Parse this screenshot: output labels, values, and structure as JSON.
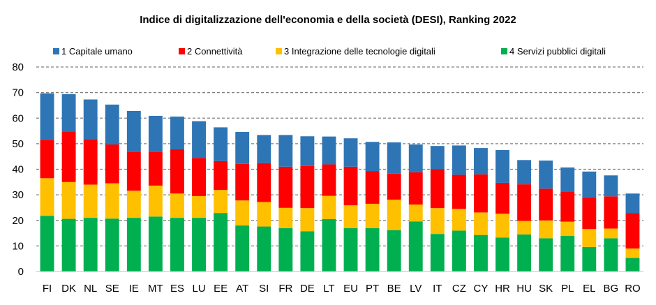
{
  "chart_data": {
    "type": "bar",
    "stacked": true,
    "title": "Indice di digitalizzazione dell'economia e della società (DESI), Ranking 2022",
    "xlabel": "",
    "ylabel": "",
    "ylim": [
      0,
      80
    ],
    "yticks": [
      0,
      10,
      20,
      30,
      40,
      50,
      60,
      70,
      80
    ],
    "grid": "horizontal-dashed",
    "legend_position": "top",
    "categories": [
      "FI",
      "DK",
      "NL",
      "SE",
      "IE",
      "MT",
      "ES",
      "LU",
      "EE",
      "AT",
      "SI",
      "FR",
      "DE",
      "LT",
      "EU",
      "PT",
      "BE",
      "LV",
      "IT",
      "CZ",
      "CY",
      "HR",
      "HU",
      "SK",
      "PL",
      "EL",
      "BG",
      "RO"
    ],
    "series": [
      {
        "name": "4 Servizi pubblici digitali",
        "color": "#00b050",
        "values": [
          21.8,
          20.6,
          21.0,
          20.7,
          21.0,
          21.5,
          21.0,
          21.0,
          22.9,
          18.0,
          17.6,
          17.0,
          15.7,
          20.5,
          17.0,
          17.0,
          16.2,
          19.6,
          14.7,
          16.0,
          14.3,
          13.3,
          14.5,
          13.0,
          14.0,
          9.6,
          13.0,
          5.3
        ]
      },
      {
        "name": "3 Integrazione delle tecnologie digitali",
        "color": "#ffc000",
        "values": [
          14.7,
          14.4,
          13.0,
          13.8,
          10.6,
          12.1,
          9.5,
          8.5,
          9.0,
          9.8,
          9.6,
          7.9,
          9.1,
          9.1,
          8.9,
          9.5,
          11.9,
          6.6,
          10.1,
          8.5,
          8.8,
          9.3,
          5.3,
          7.0,
          5.5,
          7.0,
          3.8,
          3.7
        ]
      },
      {
        "name": "2 Connettività",
        "color": "#ff0000",
        "values": [
          15.0,
          19.6,
          17.6,
          15.2,
          15.3,
          13.2,
          17.3,
          14.9,
          11.3,
          14.3,
          15.2,
          16.1,
          16.5,
          12.3,
          15.1,
          12.8,
          10.2,
          12.6,
          15.2,
          13.3,
          14.9,
          12.1,
          14.3,
          12.4,
          11.8,
          12.2,
          12.6,
          13.9
        ]
      },
      {
        "name": "1 Capitale umano",
        "color": "#2e75b6",
        "values": [
          18.2,
          14.8,
          15.7,
          15.6,
          15.9,
          14.1,
          12.8,
          14.4,
          13.2,
          12.5,
          11.0,
          12.4,
          11.6,
          10.9,
          11.1,
          11.4,
          12.2,
          10.9,
          9.1,
          11.5,
          10.3,
          12.8,
          9.5,
          11.0,
          9.4,
          10.3,
          8.2,
          7.6
        ]
      }
    ]
  }
}
